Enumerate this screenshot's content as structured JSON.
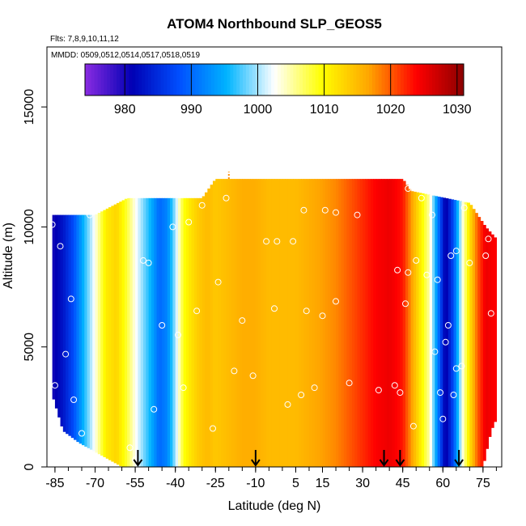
{
  "chart_data": {
    "type": "heatmap",
    "title": "ATOM4 Northbound SLP_GEOS5",
    "subtitle_flights": "Flts: 7,8,9,10,11,12",
    "subtitle_dates": "MMDD: 0509,0512,0514,0517,0518,0519",
    "xlabel": "Latitude (deg N)",
    "ylabel": "Altitude (m)",
    "xlim": [
      -88,
      82
    ],
    "ylim": [
      0,
      17500
    ],
    "x_ticks": [
      -85,
      -70,
      -55,
      -40,
      -25,
      -10,
      5,
      15,
      30,
      45,
      60,
      75
    ],
    "x_tick_labels": [
      "-85",
      "-70",
      "-55",
      "-40",
      "-25",
      "-10",
      "5",
      "15",
      "30",
      "45",
      "60",
      "75"
    ],
    "y_ticks": [
      0,
      5000,
      10000,
      15000
    ],
    "y_tick_labels": [
      "0",
      "5000",
      "10000",
      "15000"
    ],
    "colorbar": {
      "range": [
        974,
        1031
      ],
      "ticks": [
        980,
        990,
        1000,
        1010,
        1020,
        1030
      ],
      "tick_labels": [
        "980",
        "990",
        "1000",
        "1010",
        "1020",
        "1030"
      ],
      "colors": [
        "#8a2be2",
        "#0000b4",
        "#0050ff",
        "#00b4ff",
        "#ffffff",
        "#ffff00",
        "#ffa500",
        "#ff0000",
        "#8b0000"
      ]
    },
    "slp_profile": {
      "lat": [
        -86,
        -82,
        -78,
        -74,
        -70,
        -66,
        -62,
        -58,
        -55,
        -52,
        -49,
        -46,
        -43,
        -40,
        -37,
        -34,
        -31,
        -28,
        -25,
        -20,
        -15,
        -10,
        -5,
        0,
        5,
        10,
        15,
        20,
        25,
        30,
        35,
        40,
        45,
        50,
        55,
        58,
        61,
        64,
        67,
        70,
        73,
        76,
        79
      ],
      "slp": [
        980,
        983,
        988,
        996,
        1003,
        1011,
        1013,
        1008,
        1003,
        999,
        995,
        990,
        992,
        1000,
        1009,
        1012,
        1014,
        1015,
        1014,
        1015,
        1016,
        1016,
        1015,
        1015,
        1015,
        1016,
        1017,
        1018,
        1020,
        1022,
        1024,
        1025,
        1023,
        1014,
        1005,
        992,
        980,
        988,
        1002,
        1012,
        1020,
        1025,
        1024
      ]
    },
    "coverage_top_m": [
      {
        "lat": -86,
        "top_m": 10500
      },
      {
        "lat": -70,
        "top_m": 10500
      },
      {
        "lat": -58,
        "top_m": 11200
      },
      {
        "lat": -30,
        "top_m": 11200
      },
      {
        "lat": -25,
        "top_m": 12000
      },
      {
        "lat": 45,
        "top_m": 12000
      },
      {
        "lat": 48,
        "top_m": 11500
      },
      {
        "lat": 70,
        "top_m": 11000
      },
      {
        "lat": 76,
        "top_m": 10000
      },
      {
        "lat": 80,
        "top_m": 9500
      }
    ],
    "coverage_bottom_m": [
      {
        "lat": -86,
        "bottom_m": 3000
      },
      {
        "lat": -82,
        "bottom_m": 1500
      },
      {
        "lat": -76,
        "bottom_m": 1000
      },
      {
        "lat": -68,
        "bottom_m": 500
      },
      {
        "lat": -60,
        "bottom_m": 0
      },
      {
        "lat": 75,
        "bottom_m": 0
      },
      {
        "lat": 78,
        "bottom_m": 1500
      },
      {
        "lat": 80,
        "bottom_m": 2000
      }
    ],
    "profile_points": [
      {
        "lat": -86,
        "alt": 10100
      },
      {
        "lat": -85,
        "alt": 3400
      },
      {
        "lat": -83,
        "alt": 9200
      },
      {
        "lat": -81,
        "alt": 4700
      },
      {
        "lat": -79,
        "alt": 7000
      },
      {
        "lat": -78,
        "alt": 2800
      },
      {
        "lat": -75,
        "alt": 1400
      },
      {
        "lat": -72,
        "alt": 10500
      },
      {
        "lat": -57,
        "alt": 800
      },
      {
        "lat": -55,
        "alt": 300
      },
      {
        "lat": -52,
        "alt": 8600
      },
      {
        "lat": -50,
        "alt": 8500
      },
      {
        "lat": -48,
        "alt": 2400
      },
      {
        "lat": -45,
        "alt": 5900
      },
      {
        "lat": -41,
        "alt": 10000
      },
      {
        "lat": -39,
        "alt": 5500
      },
      {
        "lat": -37,
        "alt": 3300
      },
      {
        "lat": -35,
        "alt": 10200
      },
      {
        "lat": -32,
        "alt": 6500
      },
      {
        "lat": -30,
        "alt": 10900
      },
      {
        "lat": -26,
        "alt": 1600
      },
      {
        "lat": -24,
        "alt": 7700
      },
      {
        "lat": -21,
        "alt": 11200
      },
      {
        "lat": -18,
        "alt": 4000
      },
      {
        "lat": -15,
        "alt": 6100
      },
      {
        "lat": -11,
        "alt": 3800
      },
      {
        "lat": -6,
        "alt": 9400
      },
      {
        "lat": -3,
        "alt": 6600
      },
      {
        "lat": -2,
        "alt": 9400
      },
      {
        "lat": 2,
        "alt": 2600
      },
      {
        "lat": 4,
        "alt": 9400
      },
      {
        "lat": 7,
        "alt": 3000
      },
      {
        "lat": 8,
        "alt": 10700
      },
      {
        "lat": 9,
        "alt": 6500
      },
      {
        "lat": 12,
        "alt": 3300
      },
      {
        "lat": 15,
        "alt": 6300
      },
      {
        "lat": 16,
        "alt": 10700
      },
      {
        "lat": 20,
        "alt": 6900
      },
      {
        "lat": 20,
        "alt": 10600
      },
      {
        "lat": 25,
        "alt": 3500
      },
      {
        "lat": 28,
        "alt": 10500
      },
      {
        "lat": 36,
        "alt": 3200
      },
      {
        "lat": 42,
        "alt": 3400
      },
      {
        "lat": 43,
        "alt": 8200
      },
      {
        "lat": 44,
        "alt": 3100
      },
      {
        "lat": 46,
        "alt": 6800
      },
      {
        "lat": 47,
        "alt": 11600
      },
      {
        "lat": 47,
        "alt": 8100
      },
      {
        "lat": 49,
        "alt": 1700
      },
      {
        "lat": 50,
        "alt": 8600
      },
      {
        "lat": 52,
        "alt": 11200
      },
      {
        "lat": 54,
        "alt": 8000
      },
      {
        "lat": 56,
        "alt": 10500
      },
      {
        "lat": 57,
        "alt": 4800
      },
      {
        "lat": 58,
        "alt": 7800
      },
      {
        "lat": 59,
        "alt": 3100
      },
      {
        "lat": 60,
        "alt": 2000
      },
      {
        "lat": 61,
        "alt": 5200
      },
      {
        "lat": 62,
        "alt": 5900
      },
      {
        "lat": 63,
        "alt": 8800
      },
      {
        "lat": 64,
        "alt": 3000
      },
      {
        "lat": 65,
        "alt": 4100
      },
      {
        "lat": 65,
        "alt": 9000
      },
      {
        "lat": 67,
        "alt": 4200
      },
      {
        "lat": 68,
        "alt": 10800
      },
      {
        "lat": 70,
        "alt": 8500
      },
      {
        "lat": 74,
        "alt": 10900
      },
      {
        "lat": 76,
        "alt": 8800
      },
      {
        "lat": 77,
        "alt": 9500
      },
      {
        "lat": 78,
        "alt": 6400
      },
      {
        "lat": 79,
        "alt": 200
      }
    ],
    "arrows_lat": [
      -54,
      -10,
      38,
      44,
      66
    ],
    "marker_lat": -20
  }
}
